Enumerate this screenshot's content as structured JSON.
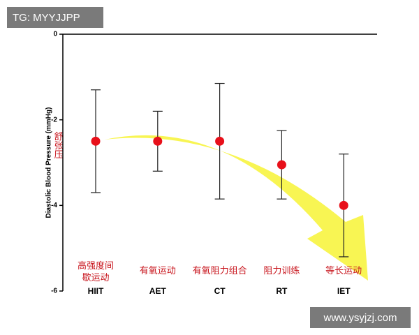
{
  "chart_data": {
    "type": "errorbar",
    "ylabel": "Diastolic Blood Pressure (mmHg)",
    "annotation": "舒张压",
    "categories": [
      "HIIT",
      "AET",
      "CT",
      "RT",
      "IET"
    ],
    "category_labels_cn": [
      "高强度间歇运动",
      "有氧运动",
      "有氧阻力组合",
      "阻力训练",
      "等长运动"
    ],
    "values": [
      -2.5,
      -2.5,
      -2.5,
      -3.05,
      -4.0
    ],
    "errors": [
      1.2,
      0.7,
      1.35,
      0.8,
      1.2
    ],
    "color": "#e8101a",
    "ylim": [
      0,
      -6
    ],
    "yticks": [
      0,
      -2,
      -4,
      -6
    ],
    "watermarks": [
      "TG: MYYJJPP",
      "www.ysyjzj.com"
    ]
  }
}
